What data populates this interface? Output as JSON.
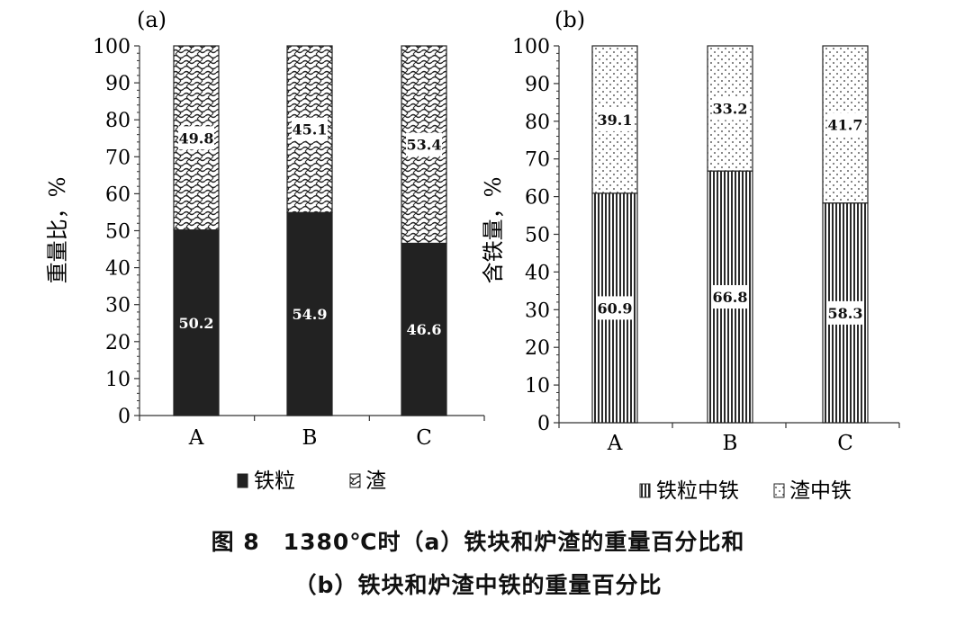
{
  "chart_data": [
    {
      "type": "bar",
      "stacked": true,
      "panel_label": "(a)",
      "ylabel": "重量比，%",
      "xlabel": "",
      "ylim": [
        0,
        100
      ],
      "yticks": [
        0,
        10,
        20,
        30,
        40,
        50,
        60,
        70,
        80,
        90,
        100
      ],
      "categories": [
        "A",
        "B",
        "C"
      ],
      "series": [
        {
          "name": "铁粒",
          "values": [
            50.2,
            54.9,
            46.6
          ],
          "pattern": "solid",
          "color": "#222222"
        },
        {
          "name": "渣",
          "values": [
            49.8,
            45.1,
            53.4
          ],
          "pattern": "wave",
          "color": "#333333"
        }
      ],
      "legend_position": "bottom"
    },
    {
      "type": "bar",
      "stacked": true,
      "panel_label": "(b)",
      "ylabel": "含铁量，%",
      "xlabel": "",
      "ylim": [
        0,
        100
      ],
      "yticks": [
        0,
        10,
        20,
        30,
        40,
        50,
        60,
        70,
        80,
        90,
        100
      ],
      "categories": [
        "A",
        "B",
        "C"
      ],
      "series": [
        {
          "name": "铁粒中铁",
          "values": [
            60.9,
            66.8,
            58.3
          ],
          "pattern": "vertical-lines",
          "color": "#333333"
        },
        {
          "name": "渣中铁",
          "values": [
            39.1,
            33.2,
            41.7
          ],
          "pattern": "dots",
          "color": "#444444"
        }
      ],
      "legend_position": "bottom"
    }
  ],
  "caption": {
    "line1": "图 8　1380℃时（a）铁块和炉渣的重量百分比和",
    "line2": "（b）铁块和炉渣中铁的重量百分比"
  }
}
